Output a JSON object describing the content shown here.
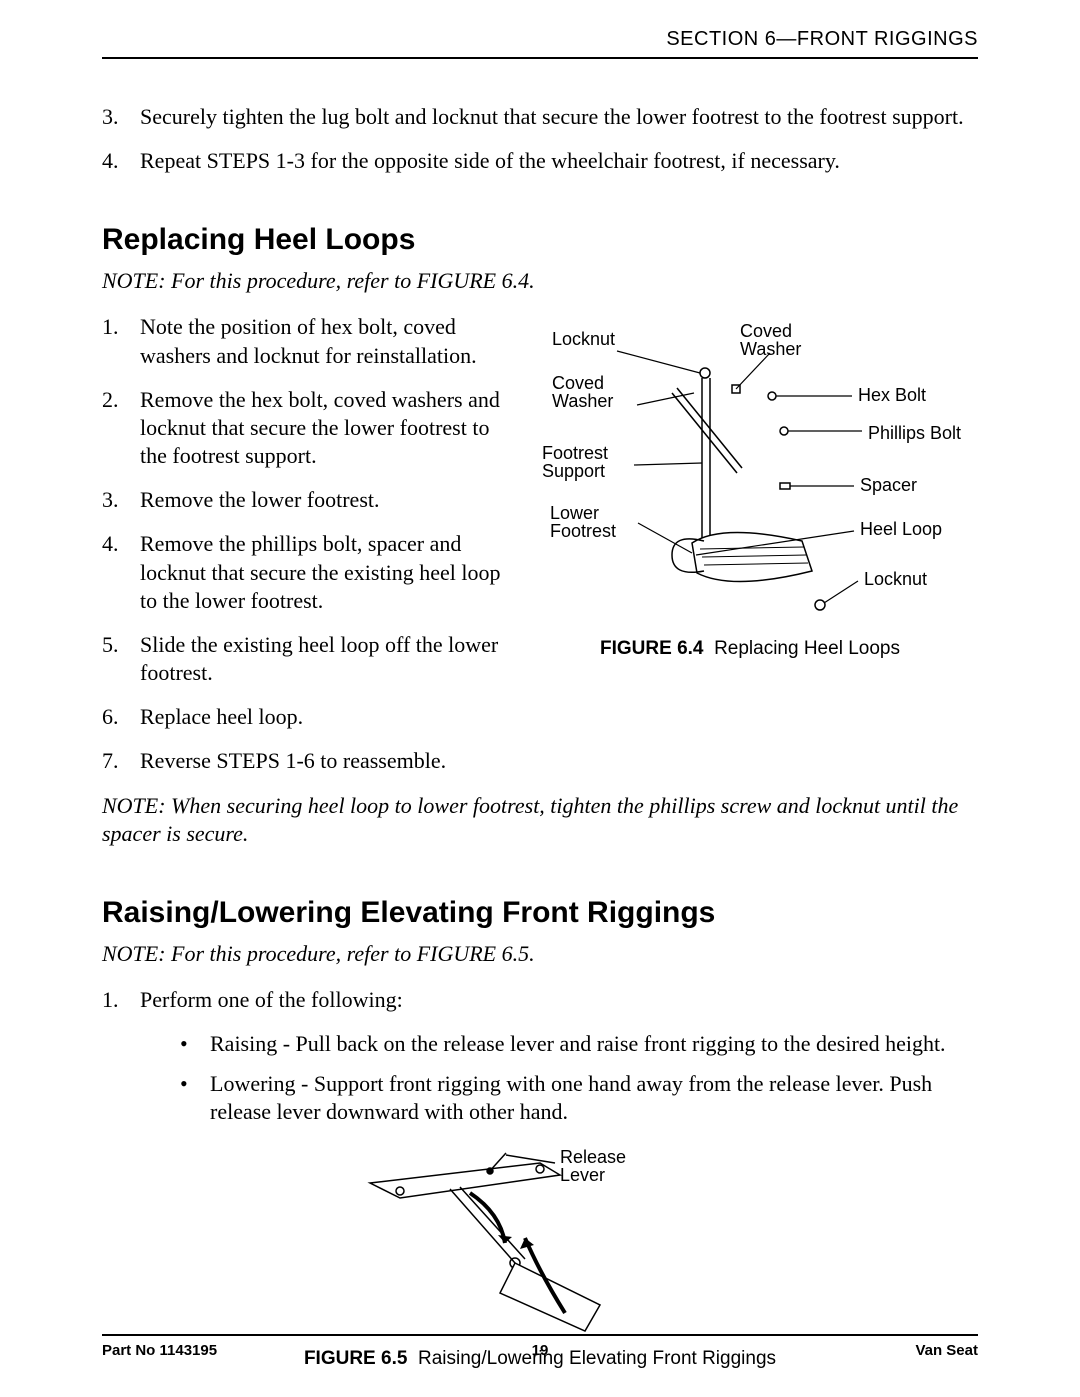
{
  "section_header": "SECTION 6—FRONT RIGGINGS",
  "intro_steps": [
    "Securely tighten the lug bolt and locknut that secure the lower footrest to the footrest support.",
    "Repeat STEPS 1-3 for the opposite side of the wheelchair footrest, if necessary."
  ],
  "intro_start_num": 3,
  "h1": "Replacing Heel Loops",
  "note1": "NOTE: For this procedure, refer to FIGURE 6.4.",
  "heel_steps": [
    "Note the position of hex bolt, coved washers and locknut for reinstallation.",
    "Remove the hex bolt, coved washers and locknut that secure the lower footrest to the footrest support.",
    "Remove the lower footrest.",
    "Remove the phillips bolt, spacer and locknut that secure the existing heel loop to the lower footrest.",
    "Slide the existing heel loop off the lower footrest.",
    "Replace heel loop.",
    "Reverse STEPS 1-6 to reassemble."
  ],
  "fig64": {
    "num": "FIGURE 6.4",
    "title": "Replacing Heel Loops",
    "labels": {
      "locknut_top": "Locknut",
      "coved_washer_top": "Coved\nWasher",
      "coved_washer_left": "Coved\nWasher",
      "footrest_support": "Footrest\nSupport",
      "lower_footrest": "Lower\nFootrest",
      "hex_bolt": "Hex Bolt",
      "phillips_bolt": "Phillips Bolt",
      "spacer": "Spacer",
      "heel_loop": "Heel Loop",
      "locknut_bottom": "Locknut"
    }
  },
  "note2": "NOTE: When securing heel loop to lower footrest, tighten the phillips screw and locknut until the spacer is secure.",
  "h2": "Raising/Lowering Elevating Front Riggings",
  "note3": "NOTE: For this procedure, refer to FIGURE 6.5.",
  "rl_lead": "Perform one of the following:",
  "rl_bullets": [
    "Raising - Pull back on the release lever and raise front rigging to the desired height.",
    "Lowering - Support front rigging with one hand away from the release lever. Push release lever downward with other hand."
  ],
  "fig65": {
    "num": "FIGURE 6.5",
    "title": "Raising/Lowering Elevating Front Riggings",
    "label": "Release\nLever"
  },
  "footer": {
    "part": "Part No 1143195",
    "page": "19",
    "doc": "Van Seat"
  }
}
